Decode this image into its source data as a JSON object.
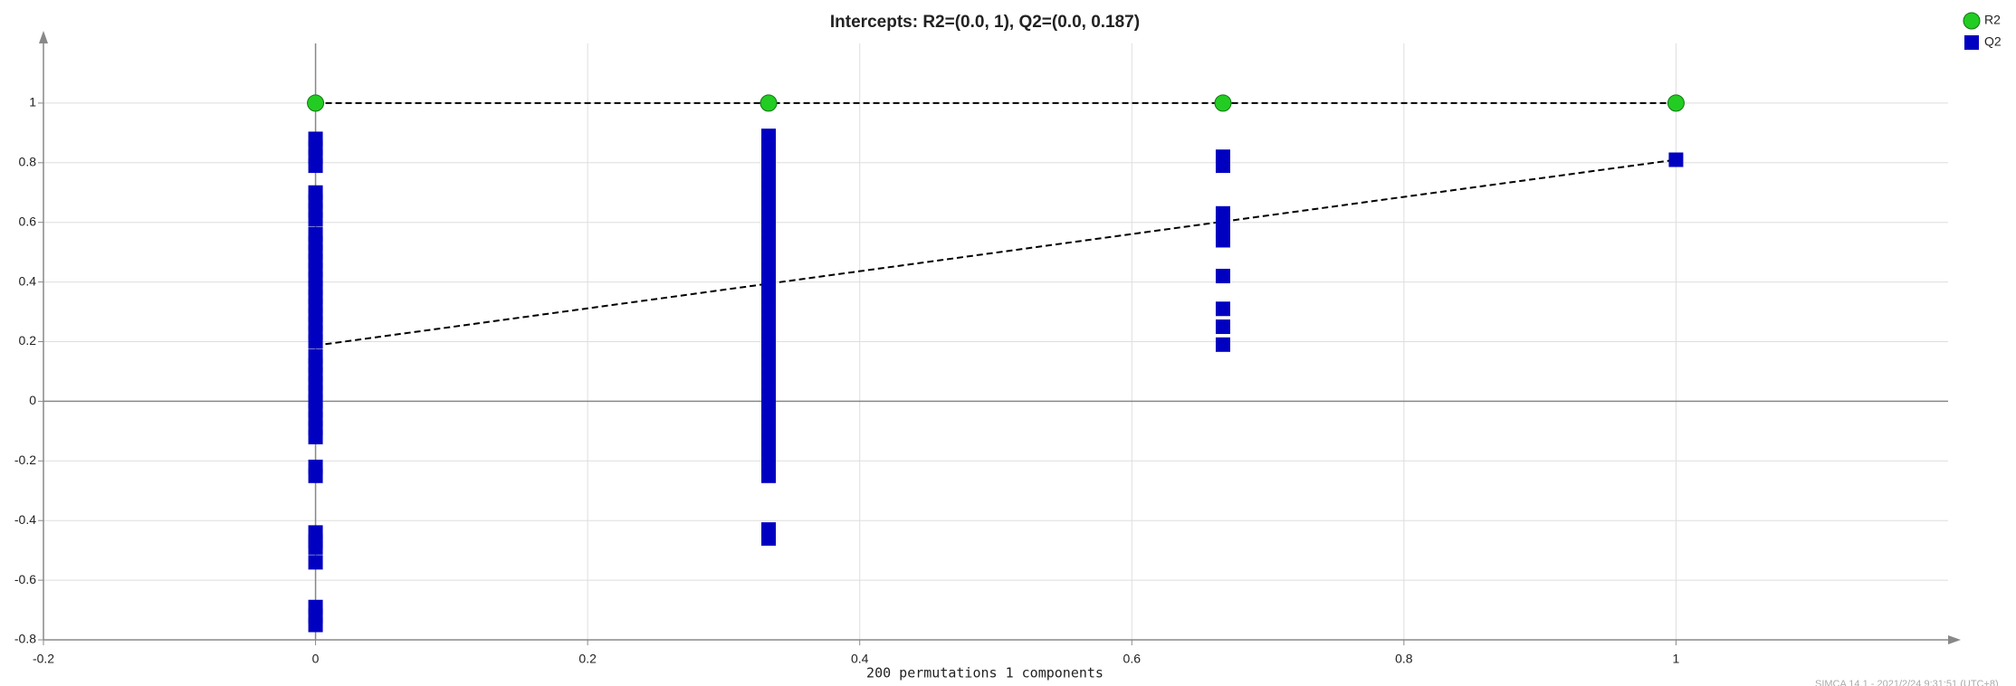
{
  "chart_data": {
    "type": "scatter",
    "title": "Intercepts: R2=(0.0, 1), Q2=(0.0, 0.187)",
    "x_label": "200 permutations 1 components",
    "watermark": "SIMCA 14.1 - 2021/2/24 9:31:51 (UTC+8)",
    "xlim": [
      -0.2,
      1.2
    ],
    "ylim": [
      -0.8,
      1.2
    ],
    "xticks": [
      -0.2,
      0,
      0.2,
      0.4,
      0.6,
      0.8,
      1
    ],
    "yticks": [
      -0.8,
      -0.6,
      -0.4,
      -0.2,
      0,
      0.2,
      0.4,
      0.6,
      0.8,
      1
    ],
    "grid": true,
    "legend": "top-right",
    "series": [
      {
        "name": "R2",
        "color": "#22cc22",
        "marker": "circle",
        "x": [
          0,
          0.333,
          0.667,
          1
        ],
        "values": [
          1,
          1,
          1,
          1
        ]
      },
      {
        "name": "Q2",
        "color": "#0000c0",
        "marker": "square",
        "x": [
          0,
          0,
          0,
          0,
          0,
          0,
          0,
          0,
          0,
          0,
          0,
          0,
          0,
          0,
          0,
          0,
          0,
          0,
          0,
          0,
          0,
          0,
          0,
          0,
          0,
          0,
          0,
          0,
          0,
          0,
          0,
          0,
          0,
          0,
          0,
          0,
          0,
          0,
          0,
          0,
          0.333,
          0.333,
          0.333,
          0.333,
          0.333,
          0.333,
          0.333,
          0.333,
          0.333,
          0.333,
          0.333,
          0.333,
          0.333,
          0.333,
          0.333,
          0.333,
          0.333,
          0.333,
          0.333,
          0.333,
          0.333,
          0.333,
          0.333,
          0.333,
          0.333,
          0.333,
          0.333,
          0.333,
          0.333,
          0.333,
          0.333,
          0.333,
          0.333,
          0.333,
          0.333,
          0.333,
          0.333,
          0.333,
          0.333,
          0.333,
          0.333,
          0.667,
          0.667,
          0.667,
          0.667,
          0.667,
          0.667,
          0.667,
          0.667,
          0.667,
          0.667,
          1
        ],
        "values": [
          0.88,
          0.85,
          0.82,
          0.79,
          0.7,
          0.67,
          0.64,
          0.61,
          0.56,
          0.53,
          0.5,
          0.47,
          0.44,
          0.41,
          0.38,
          0.35,
          0.32,
          0.29,
          0.26,
          0.23,
          0.2,
          0.15,
          0.12,
          0.09,
          0.06,
          0.03,
          0.0,
          -0.03,
          -0.06,
          -0.09,
          -0.12,
          -0.22,
          -0.25,
          -0.44,
          -0.47,
          -0.49,
          -0.54,
          -0.69,
          -0.72,
          -0.75,
          0.89,
          0.86,
          0.83,
          0.8,
          0.77,
          0.74,
          0.71,
          0.68,
          0.65,
          0.62,
          0.59,
          0.56,
          0.53,
          0.5,
          0.47,
          0.44,
          0.41,
          0.38,
          0.35,
          0.32,
          0.29,
          0.26,
          0.23,
          0.2,
          0.17,
          0.14,
          0.11,
          0.08,
          0.05,
          0.02,
          -0.01,
          -0.04,
          -0.07,
          -0.1,
          -0.13,
          -0.16,
          -0.19,
          -0.22,
          -0.25,
          -0.43,
          -0.46,
          0.82,
          0.79,
          0.63,
          0.6,
          0.57,
          0.54,
          0.42,
          0.31,
          0.25,
          0.19,
          0.81
        ]
      }
    ],
    "lines": [
      {
        "x": [
          0,
          1
        ],
        "y": [
          1,
          1
        ]
      },
      {
        "x": [
          0,
          1
        ],
        "y": [
          0.187,
          0.81
        ]
      }
    ]
  }
}
